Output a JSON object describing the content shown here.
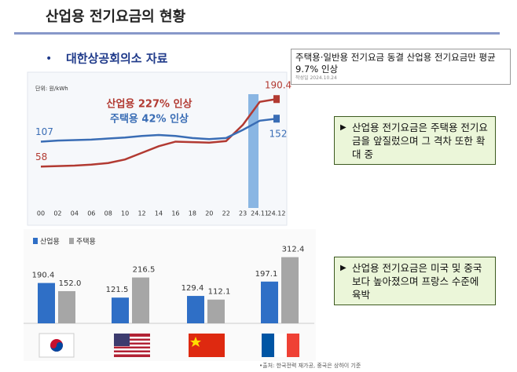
{
  "slide": {
    "title": "산업용 전기요금의 현황",
    "bullet": "대한상공회의소 자료",
    "note": {
      "text": "주택용·일반용 전기요금 동결 산업용 전기요금만 평균 9.7% 인상",
      "date": "작성일 2024.10.24"
    },
    "callouts": [
      "산업용 전기요금은 주택용 전기요금을 앞질렀으며 그 격차 또한 확대 중",
      "산업용 전기요금은 미국 및 중국보다 높아졌으며 프랑스 수준에 육박"
    ],
    "source": "•출처: 한국전력 재가공, 중국은 상하이 기준"
  },
  "chart_data": [
    {
      "type": "line",
      "unit_label": "단위: 원/kWh",
      "annotations": [
        "산업용 227% 인상",
        "주택용 42% 인상"
      ],
      "categories": [
        "00",
        "02",
        "04",
        "06",
        "08",
        "10",
        "12",
        "14",
        "16",
        "18",
        "20",
        "22",
        "23",
        "24.11",
        "24.12"
      ],
      "series": [
        {
          "name": "산업용",
          "color": "#b23a32",
          "values": [
            58,
            59,
            60,
            62,
            65,
            72,
            85,
            98,
            107,
            106,
            105,
            108,
            140,
            185,
            190.4
          ]
        },
        {
          "name": "주택용",
          "color": "#3a6db5",
          "values": [
            107,
            109,
            110,
            111,
            113,
            115,
            118,
            120,
            118,
            114,
            112,
            114,
            130,
            148,
            152
          ]
        }
      ]
    },
    {
      "type": "bar",
      "categories": [
        null,
        null,
        null,
        null
      ],
      "series": [
        {
          "name": "산업용",
          "color": "#2f6fc6",
          "values": [
            190.4,
            121.5,
            129.4,
            197.1
          ],
          "value_labels": [
            "190.4",
            "121.5",
            "129.4",
            "197.1"
          ]
        },
        {
          "name": "주택용",
          "color": "#a6a6a6",
          "values": [
            152.0,
            216.5,
            112.1,
            312.4
          ],
          "value_labels": [
            "152.0",
            "216.5",
            "112.1",
            "312.4"
          ]
        }
      ]
    }
  ]
}
